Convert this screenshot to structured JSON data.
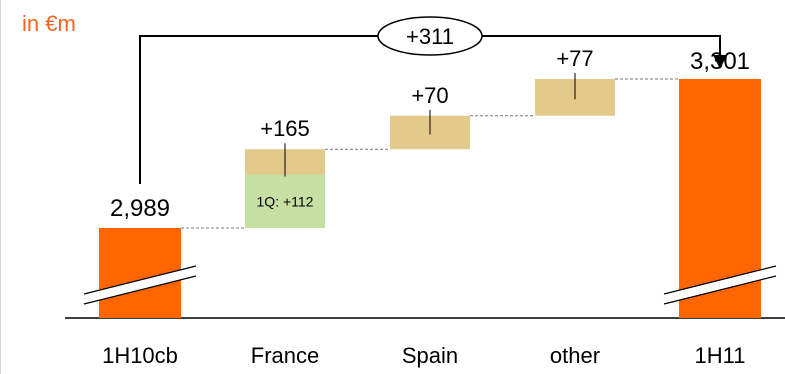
{
  "unit_label": "in €m",
  "colors": {
    "total_bar": "#ff6600",
    "delta_bar": "#e3c98a",
    "first_quarter": "#c6e0a4",
    "unit_text": "#f26522"
  },
  "chart_data": {
    "type": "bar",
    "subtype": "waterfall",
    "categories": [
      "1H10cb",
      "France",
      "Spain",
      "other",
      "1H11"
    ],
    "start": 2989,
    "end": 3301,
    "deltas": [
      {
        "category": "France",
        "value": 165,
        "label": "+165"
      },
      {
        "category": "Spain",
        "value": 70,
        "label": "+70"
      },
      {
        "category": "other",
        "value": 77,
        "label": "+77"
      }
    ],
    "total_labels": {
      "start": "2,989",
      "end": "3,301"
    },
    "total_change": {
      "value": 311,
      "label": "+311"
    },
    "annotation": {
      "category": "France",
      "label": "1Q: +112",
      "value": 112
    },
    "axis_break": true
  }
}
